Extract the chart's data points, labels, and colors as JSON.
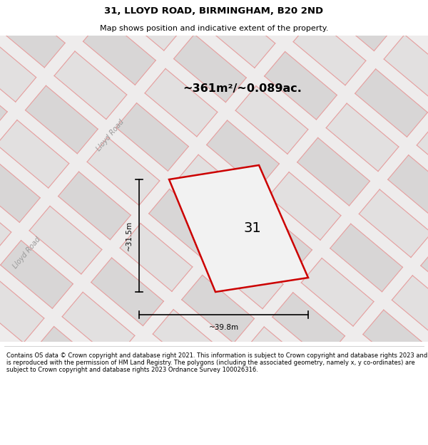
{
  "title": "31, LLOYD ROAD, BIRMINGHAM, B20 2ND",
  "subtitle": "Map shows position and indicative extent of the property.",
  "area_text": "~361m²/~0.089ac.",
  "label_31": "31",
  "dim_width": "~39.8m",
  "dim_height": "~31.5m",
  "road_label_1": "Lloyd Road",
  "road_label_2": "Lloyd Road",
  "copyright_text": "Contains OS data © Crown copyright and database right 2021. This information is subject to Crown copyright and database rights 2023 and is reproduced with the permission of HM Land Registry. The polygons (including the associated geometry, namely x, y co-ordinates) are subject to Crown copyright and database rights 2023 Ordnance Survey 100026316.",
  "figsize": [
    6.0,
    6.25
  ],
  "dpi": 100,
  "title_fontsize": 9.5,
  "subtitle_fontsize": 8.0,
  "area_fontsize": 11.5,
  "label_fontsize": 14,
  "dim_fontsize": 7.5,
  "road_fontsize": 7,
  "footer_fontsize": 6.0,
  "map_bg": "#eeecec",
  "block_color_a": "#e2e0e0",
  "block_color_b": "#d8d6d6",
  "block_edge": "#cccccc",
  "road_line_color": "#e8a0a0",
  "parcel_edge": "#cc0000",
  "parcel_fill": "#f2f2f2",
  "parcel_lw": 1.8
}
